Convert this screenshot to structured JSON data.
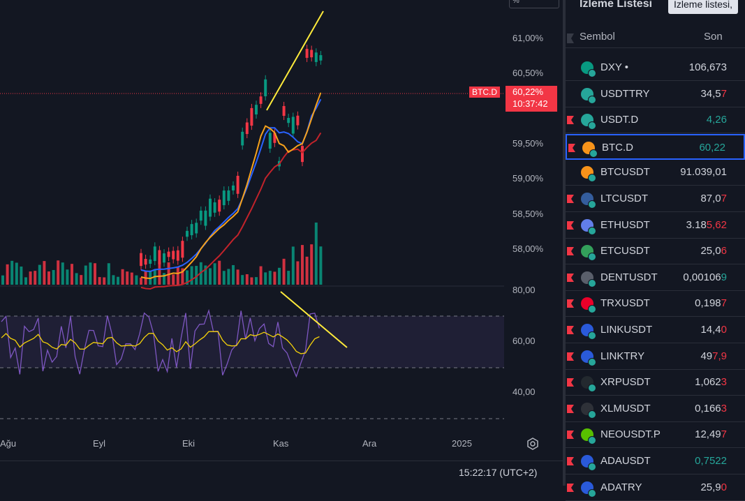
{
  "chart": {
    "symbol_tag": "BTC.D",
    "current_price": "60,22%",
    "countdown": "10:37:42",
    "percent_corner": "%",
    "price_axis": [
      "61,00%",
      "60,50%",
      "59,50%",
      "59,00%",
      "58,50%",
      "58,00%"
    ],
    "rsi_axis": [
      "80,00",
      "60,00",
      "40,00"
    ],
    "time_axis": [
      "Ağu",
      "Eyl",
      "Eki",
      "Kas",
      "Ara",
      "2025"
    ],
    "clock": "15:22:17 (UTC+2)",
    "colors": {
      "up": "#089981",
      "down": "#f23645",
      "rsi": "#7e57c2",
      "rsi_ma": "#f5d20a",
      "trend": "#ffeb3b",
      "ma_orange": "#f7a21b",
      "ma_blue": "#2962ff",
      "ma_red": "#c2232b"
    }
  },
  "watchlist": {
    "title": "İzleme Listesi",
    "tooltip": "İzleme listesi,",
    "col_symbol": "Sembol",
    "col_last": "Son",
    "rows": [
      {
        "sym": "DXY",
        "suffix": " •",
        "last_a": "106,673",
        "last_b": "",
        "color_b": "#d1d4dc",
        "icon": "dollar-icon",
        "icon_color": "#089981",
        "flag": false
      },
      {
        "sym": "USDTTRY",
        "suffix": "",
        "last_a": "34,5",
        "last_b": "7",
        "color_b": "#f23645",
        "icon": "tether-icon",
        "icon_color": "#26a69a",
        "flag": false
      },
      {
        "sym": "USDT.D",
        "suffix": "",
        "last_a": "",
        "last_b": "4,26",
        "color_b": "#26a69a",
        "icon": "tether-icon",
        "icon_color": "#26a69a",
        "flag": true
      },
      {
        "sym": "BTC.D",
        "suffix": "",
        "last_a": "",
        "last_b": "60,22",
        "color_b": "#26a69a",
        "icon": "bitcoin-icon",
        "icon_color": "#f7931a",
        "flag": true
      },
      {
        "sym": "BTCUSDT",
        "suffix": "",
        "last_a": "91.039,01",
        "last_b": "",
        "color_b": "#d1d4dc",
        "icon": "bitcoin-icon",
        "icon_color": "#f7931a",
        "flag": false
      },
      {
        "sym": "LTCUSDT",
        "suffix": "",
        "last_a": "87,0",
        "last_b": "7",
        "color_b": "#f23645",
        "icon": "litecoin-icon",
        "icon_color": "#345d9d",
        "flag": true
      },
      {
        "sym": "ETHUSDT",
        "suffix": "",
        "last_a": "3.18",
        "last_b": "5,62",
        "color_b": "#f23645",
        "icon": "ethereum-icon",
        "icon_color": "#627eea",
        "flag": true
      },
      {
        "sym": "ETCUSDT",
        "suffix": "",
        "last_a": "25,0",
        "last_b": "6",
        "color_b": "#f23645",
        "icon": "etc-icon",
        "icon_color": "#33a05b",
        "flag": true
      },
      {
        "sym": "DENTUSDT",
        "suffix": "",
        "last_a": "0,00106",
        "last_b": "9",
        "color_b": "#26a69a",
        "icon": "dent-icon",
        "icon_color": "#5a5f6b",
        "flag": true
      },
      {
        "sym": "TRXUSDT",
        "suffix": "",
        "last_a": "0,198",
        "last_b": "7",
        "color_b": "#f23645",
        "icon": "tron-icon",
        "icon_color": "#eb0029",
        "flag": true
      },
      {
        "sym": "LINKUSDT",
        "suffix": "",
        "last_a": "14,4",
        "last_b": "0",
        "color_b": "#f23645",
        "icon": "chainlink-icon",
        "icon_color": "#2a5ada",
        "flag": true
      },
      {
        "sym": "LINKTRY",
        "suffix": "",
        "last_a": "49",
        "last_b": "7,9",
        "color_b": "#f23645",
        "icon": "chainlink-icon",
        "icon_color": "#2a5ada",
        "flag": true
      },
      {
        "sym": "XRPUSDT",
        "suffix": "",
        "last_a": "1,062",
        "last_b": "3",
        "color_b": "#f23645",
        "icon": "xrp-icon",
        "icon_color": "#23292f",
        "flag": true
      },
      {
        "sym": "XLMUSDT",
        "suffix": "",
        "last_a": "0,166",
        "last_b": "3",
        "color_b": "#f23645",
        "icon": "stellar-icon",
        "icon_color": "#2e3138",
        "flag": true
      },
      {
        "sym": "NEOUSDT.P",
        "suffix": "",
        "last_a": "12,49",
        "last_b": "7",
        "color_b": "#f23645",
        "icon": "neo-icon",
        "icon_color": "#58bf00",
        "flag": true
      },
      {
        "sym": "ADAUSDT",
        "suffix": "",
        "last_a": "",
        "last_b": "0,7522",
        "color_b": "#26a69a",
        "icon": "cardano-icon",
        "icon_color": "#2a5ada",
        "flag": true
      },
      {
        "sym": "ADATRY",
        "suffix": "",
        "last_a": "25,9",
        "last_b": "0",
        "color_b": "#f23645",
        "icon": "cardano-icon",
        "icon_color": "#2a5ada",
        "flag": true
      }
    ]
  }
}
